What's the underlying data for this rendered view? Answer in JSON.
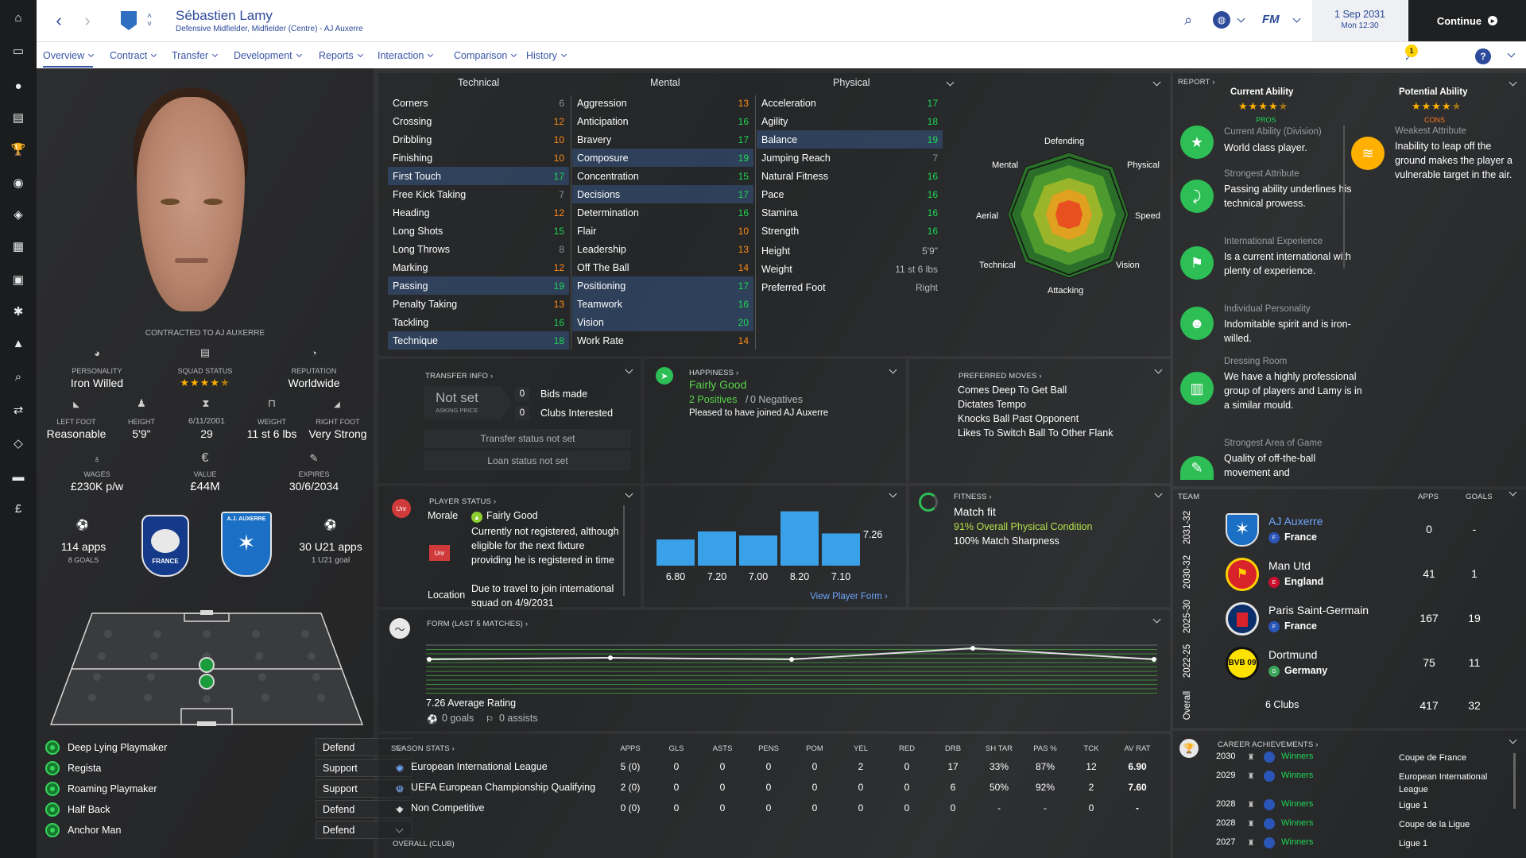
{
  "header": {
    "player_name": "Sébastien Lamy",
    "player_subtitle": "Defensive Midfielder, Midfielder (Centre) - AJ Auxerre",
    "date": "1 Sep 2031",
    "time": "Mon 12:30",
    "continue_label": "Continue",
    "fm_label": "FM"
  },
  "nav_tabs": [
    {
      "label": "Overview"
    },
    {
      "label": "Contract"
    },
    {
      "label": "Transfer"
    },
    {
      "label": "Development"
    },
    {
      "label": "Reports"
    },
    {
      "label": "Interaction"
    },
    {
      "label": "Comparison"
    },
    {
      "label": "History"
    }
  ],
  "notification_count": "1",
  "profile": {
    "contract_text": "CONTRACTED TO AJ AUXERRE",
    "personality_label": "PERSONALITY",
    "personality": "Iron Willed",
    "squad_status_label": "SQUAD STATUS",
    "reputation_label": "REPUTATION",
    "reputation": "Worldwide",
    "left_foot_label": "LEFT FOOT",
    "left_foot": "Reasonable",
    "height_label": "HEIGHT",
    "height": "5'9\"",
    "dob_label": "6/11/2001",
    "age": "29",
    "weight_label": "WEIGHT",
    "weight": "11 st 6 lbs",
    "right_foot_label": "RIGHT FOOT",
    "right_foot": "Very Strong",
    "wages_label": "WAGES",
    "wages": "£230K p/w",
    "value_label": "VALUE",
    "value": "£44M",
    "expires_label": "EXPIRES",
    "expires": "30/6/2034",
    "intl_apps": "114 apps",
    "intl_goals": "8 GOALS",
    "u21_apps": "30 U21 apps",
    "u21_goals": "1 U21 goal",
    "france_crest_text": "FRANCE",
    "auxerre_crest_text": "A.J. AUXERRE",
    "squad_stars": 4.5
  },
  "roles": [
    {
      "name": "Deep Lying Playmaker",
      "duty": "Defend"
    },
    {
      "name": "Regista",
      "duty": "Support"
    },
    {
      "name": "Roaming Playmaker",
      "duty": "Support"
    },
    {
      "name": "Half Back",
      "duty": "Defend"
    },
    {
      "name": "Anchor Man",
      "duty": "Defend"
    }
  ],
  "attributes": {
    "technical_title": "Technical",
    "mental_title": "Mental",
    "physical_title": "Physical",
    "technical": [
      {
        "name": "Corners",
        "value": "6"
      },
      {
        "name": "Crossing",
        "value": "12"
      },
      {
        "name": "Dribbling",
        "value": "10"
      },
      {
        "name": "Finishing",
        "value": "10"
      },
      {
        "name": "First Touch",
        "value": "17"
      },
      {
        "name": "Free Kick Taking",
        "value": "7"
      },
      {
        "name": "Heading",
        "value": "12"
      },
      {
        "name": "Long Shots",
        "value": "15"
      },
      {
        "name": "Long Throws",
        "value": "8"
      },
      {
        "name": "Marking",
        "value": "12"
      },
      {
        "name": "Passing",
        "value": "19"
      },
      {
        "name": "Penalty Taking",
        "value": "13"
      },
      {
        "name": "Tackling",
        "value": "16"
      },
      {
        "name": "Technique",
        "value": "18"
      }
    ],
    "mental": [
      {
        "name": "Aggression",
        "value": "13"
      },
      {
        "name": "Anticipation",
        "value": "16"
      },
      {
        "name": "Bravery",
        "value": "17"
      },
      {
        "name": "Composure",
        "value": "19"
      },
      {
        "name": "Concentration",
        "value": "15"
      },
      {
        "name": "Decisions",
        "value": "17"
      },
      {
        "name": "Determination",
        "value": "16"
      },
      {
        "name": "Flair",
        "value": "10"
      },
      {
        "name": "Leadership",
        "value": "13"
      },
      {
        "name": "Off The Ball",
        "value": "14"
      },
      {
        "name": "Positioning",
        "value": "17"
      },
      {
        "name": "Teamwork",
        "value": "16"
      },
      {
        "name": "Vision",
        "value": "20"
      },
      {
        "name": "Work Rate",
        "value": "14"
      }
    ],
    "physical": [
      {
        "name": "Acceleration",
        "value": "17"
      },
      {
        "name": "Agility",
        "value": "18"
      },
      {
        "name": "Balance",
        "value": "19"
      },
      {
        "name": "Jumping Reach",
        "value": "7"
      },
      {
        "name": "Natural Fitness",
        "value": "16"
      },
      {
        "name": "Pace",
        "value": "16"
      },
      {
        "name": "Stamina",
        "value": "16"
      },
      {
        "name": "Strength",
        "value": "16"
      }
    ],
    "physical_extra": [
      {
        "name": "Height",
        "value": "5'9\""
      },
      {
        "name": "Weight",
        "value": "11 st 6 lbs"
      },
      {
        "name": "Preferred Foot",
        "value": "Right"
      }
    ]
  },
  "radar": {
    "labels": [
      "Defending",
      "Physical",
      "Speed",
      "Vision",
      "Attacking",
      "Technical",
      "Aerial",
      "Mental"
    ]
  },
  "report": {
    "title": "REPORT",
    "current_ability_label": "Current Ability",
    "potential_ability_label": "Potential Ability",
    "pros_label": "PROS",
    "cons_label": "CONS",
    "pros": [
      {
        "title": "Current Ability (Division)",
        "text": "World class player."
      },
      {
        "title": "Strongest Attribute",
        "text": "Passing ability underlines his technical prowess."
      },
      {
        "title": "International Experience",
        "text": "Is a current international with plenty of experience."
      },
      {
        "title": "Individual Personality",
        "text": "Indomitable spirit and is iron-willed."
      },
      {
        "title": "Dressing Room",
        "text": "We have a highly professional group of players and Lamy is in a similar mould."
      },
      {
        "title": "Strongest Area of Game",
        "text": "Quality of off-the-ball movement and"
      }
    ],
    "cons": [
      {
        "title": "Weakest Attribute",
        "text": "Inability to leap off the ground makes the player a vulnerable target in the air."
      }
    ]
  },
  "transfer": {
    "title": "TRANSFER INFO",
    "not_set": "Not set",
    "asking_price": "ASKING PRICE",
    "bids_count": "0",
    "bids_label": "Bids made",
    "clubs_count": "0",
    "clubs_label": "Clubs Interested",
    "status_btn": "Transfer status not set",
    "loan_btn": "Loan status not set"
  },
  "happiness": {
    "title": "HAPPINESS",
    "status": "Fairly Good",
    "positives": "2 Positives",
    "separator": "/",
    "negatives": "0 Negatives",
    "note": "Pleased to have joined AJ Auxerre"
  },
  "preferred_moves": {
    "title": "PREFERRED MOVES",
    "items": [
      "Comes Deep To Get Ball",
      "Dictates Tempo",
      "Knocks Ball Past Opponent",
      "Likes To Switch Ball To Other Flank"
    ]
  },
  "player_status": {
    "title": "PLAYER STATUS",
    "badge": "Unr",
    "morale_label": "Morale",
    "morale": "Fairly Good",
    "status_text": "Currently not registered, although eligible for the next fixture providing he is registered in time",
    "location_label": "Location",
    "location_text": "Due to travel to join international squad on 4/9/2031"
  },
  "recent_form": {
    "latest_rating": "7.26",
    "view_button": "View Player Form"
  },
  "fitness": {
    "title": "FITNESS",
    "status": "Match fit",
    "physical": "91% Overall Physical Condition",
    "sharpness": "100% Match Sharpness"
  },
  "form": {
    "title": "FORM (LAST 5 MATCHES)",
    "avg_rating": "7.26 Average Rating",
    "goals": "0 goals",
    "assists": "0 assists"
  },
  "season_stats": {
    "title": "SEASON STATS",
    "columns": [
      "APPS",
      "GLS",
      "ASTS",
      "PENS",
      "POM",
      "YEL",
      "RED",
      "DRB",
      "SH TAR",
      "PAS %",
      "TCK",
      "AV RAT"
    ],
    "rows": [
      {
        "competition": "European International League",
        "values": [
          "5 (0)",
          "0",
          "0",
          "0",
          "0",
          "2",
          "0",
          "17",
          "33%",
          "87%",
          "12",
          "6.90"
        ]
      },
      {
        "competition": "UEFA European Championship Qualifying",
        "values": [
          "2 (0)",
          "0",
          "0",
          "0",
          "0",
          "0",
          "0",
          "6",
          "50%",
          "92%",
          "2",
          "7.60"
        ]
      },
      {
        "competition": "Non Competitive",
        "values": [
          "0 (0)",
          "0",
          "0",
          "0",
          "0",
          "0",
          "0",
          "0",
          "-",
          "-",
          "0",
          "-"
        ]
      }
    ],
    "overall_label": "OVERALL (CLUB)"
  },
  "team_history": {
    "title": "TEAM",
    "apps_label": "APPS",
    "goals_label": "GOALS",
    "season_labels": [
      "2031-32",
      "2030-32",
      "2025-30",
      "2022-25",
      "Overall"
    ],
    "clubs": [
      {
        "name": "AJ Auxerre",
        "nation": "France",
        "apps": "0",
        "goals": "-"
      },
      {
        "name": "Man Utd",
        "nation": "England",
        "apps": "41",
        "goals": "1"
      },
      {
        "name": "Paris Saint-Germain",
        "nation": "France",
        "apps": "167",
        "goals": "19"
      },
      {
        "name": "Dortmund",
        "nation": "Germany",
        "apps": "75",
        "goals": "11"
      }
    ],
    "total_label": "6 Clubs",
    "total_apps": "417",
    "total_goals": "32",
    "bvb_text": "BVB 09"
  },
  "achievements": {
    "title": "CAREER ACHIEVEMENTS",
    "items": [
      {
        "year": "2030",
        "result": "Winners",
        "competition": "Coupe de France"
      },
      {
        "year": "2029",
        "result": "Winners",
        "competition": "European International League"
      },
      {
        "year": "2028",
        "result": "Winners",
        "competition": "Ligue 1"
      },
      {
        "year": "2028",
        "result": "Winners",
        "competition": "Coupe de la Ligue"
      },
      {
        "year": "2027",
        "result": "Winners",
        "competition": "Ligue 1"
      }
    ]
  },
  "chart_data": {
    "type": "bar",
    "categories": [
      "1",
      "2",
      "3",
      "4",
      "5"
    ],
    "values": [
      6.8,
      7.2,
      7.0,
      8.2,
      7.1
    ],
    "labels": [
      "6.80",
      "7.20",
      "7.00",
      "8.20",
      "7.10"
    ],
    "ylim": [
      5.5,
      8.5
    ],
    "color": "#3aa0e8",
    "form_line": [
      6.9,
      7.0,
      6.9,
      7.6,
      6.9
    ]
  },
  "colors": {
    "accent": "#3a55a6",
    "green": "#1fd655",
    "amber": "#ffb000",
    "orange": "#ff8c1a",
    "bar": "#3aa0e8"
  }
}
